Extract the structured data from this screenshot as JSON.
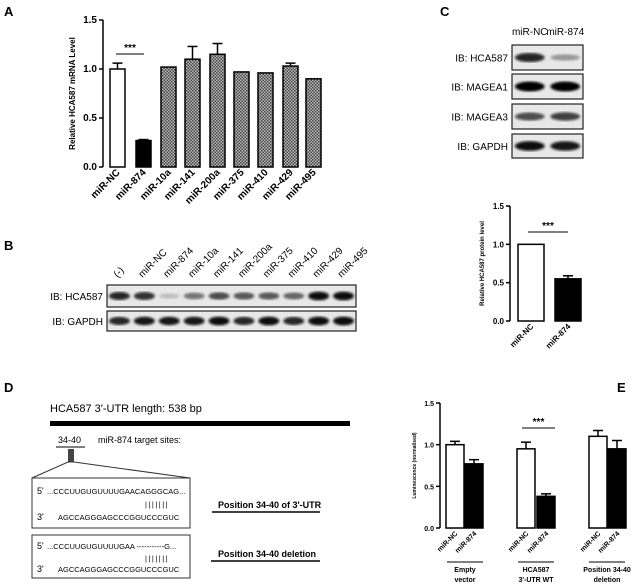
{
  "panels": {
    "a": "A",
    "b": "B",
    "c": "C",
    "d": "D",
    "e": "E"
  },
  "chart_data": [
    {
      "id": "A",
      "type": "bar",
      "ylabel": "Relative  HCA587 mRNA Level",
      "ylim": [
        0,
        1.5
      ],
      "yticks": [
        "0.0",
        "0.5",
        "1.0",
        "1.5"
      ],
      "categories": [
        "miR-NC",
        "miR-874",
        "miR-10a",
        "miR-141",
        "miR-200a",
        "miR-375",
        "miR-410",
        "miR-429",
        "miR-495"
      ],
      "values": [
        1.0,
        0.27,
        1.02,
        1.1,
        1.15,
        0.97,
        0.96,
        1.03,
        0.9
      ],
      "errors": [
        0.06,
        0.01,
        0,
        0.13,
        0.11,
        0,
        0,
        0.03,
        0
      ],
      "fills": [
        "white",
        "black",
        "hatch",
        "hatch",
        "hatch",
        "hatch",
        "hatch",
        "hatch",
        "hatch"
      ],
      "annotation": "***"
    },
    {
      "id": "C",
      "type": "bar",
      "ylabel": "Relative HCA587 protein level",
      "ylim": [
        0,
        1.5
      ],
      "yticks": [
        "0.0",
        "0.5",
        "1.0",
        "1.5"
      ],
      "categories": [
        "miR-NC",
        "miR-874"
      ],
      "values": [
        1.0,
        0.55
      ],
      "errors": [
        0,
        0.04
      ],
      "fills": [
        "white",
        "black"
      ],
      "annotation": "***"
    },
    {
      "id": "E",
      "type": "bar",
      "ylabel": "Luminescence (normalised)",
      "ylim": [
        0,
        1.5
      ],
      "yticks": [
        "0.0",
        "0.5",
        "1.0",
        "1.5"
      ],
      "categories": [
        "miR-NC",
        "miR-874",
        "miR-NC",
        "miR-874",
        "miR-NC",
        "miR-874"
      ],
      "values": [
        1.0,
        0.77,
        0.95,
        0.38,
        1.1,
        0.95
      ],
      "errors": [
        0.04,
        0.05,
        0.08,
        0.03,
        0.07,
        0.1
      ],
      "fills": [
        "white",
        "black",
        "white",
        "black",
        "white",
        "black"
      ],
      "groups": [
        [
          "Empty",
          "vector"
        ],
        [
          "HCA587",
          "3'-UTR WT"
        ],
        [
          "Position 34-40",
          "deletion"
        ]
      ],
      "annotation": "***"
    }
  ],
  "blot_b": {
    "lanes": [
      "(-)",
      "miR-NC",
      "miR-874",
      "miR-10a",
      "miR-141",
      "miR-200a",
      "miR-375",
      "miR-410",
      "miR-429",
      "miR-495"
    ],
    "rows": [
      "IB: HCA587",
      "IB: GAPDH"
    ],
    "intensity": [
      [
        0.85,
        0.8,
        0.25,
        0.55,
        0.7,
        0.65,
        0.65,
        0.6,
        0.95,
        0.95
      ],
      [
        0.85,
        0.9,
        0.9,
        0.9,
        0.95,
        0.85,
        0.95,
        0.85,
        0.95,
        0.95
      ]
    ]
  },
  "blot_c": {
    "lanes": [
      "miR-NC",
      "miR-874"
    ],
    "rows": [
      "IB: HCA587",
      "IB: MAGEA1",
      "IB: MAGEA3",
      "IB: GAPDH"
    ],
    "intensity": [
      [
        0.85,
        0.4
      ],
      [
        1,
        1
      ],
      [
        0.7,
        0.75
      ],
      [
        0.95,
        0.9
      ]
    ]
  },
  "panel_d": {
    "title": "HCA587 3'-UTR length: 538 bp",
    "site": "34-40",
    "site_label": "miR-874 target sites:",
    "wt": {
      "p5": "5'",
      "s5": "...CCCUUGUGUUUUGAACAGGGCAG...",
      "pairs": "|||||||",
      "p3": "3'",
      "s3": "AGCCAGGGAGCCCGGUCCCGUC",
      "label": "Position 34-40 of 3'-UTR"
    },
    "del": {
      "p5": "5'",
      "s5": "...CCCUUGUGUUUUGAA -----------G...",
      "pairs": "|||||||",
      "p3": "3'",
      "s3": "AGCCAGGGAGCCCGGUCCCGUC",
      "label": "Position 34-40 deletion"
    }
  }
}
